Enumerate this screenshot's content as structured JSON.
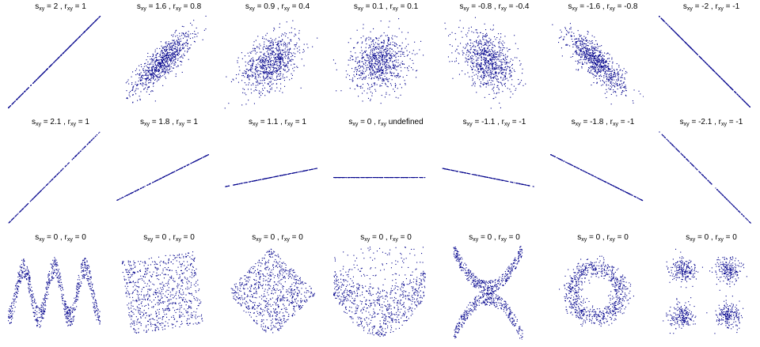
{
  "figure": {
    "point_color": "#00008b"
  },
  "chart_data": [
    {
      "type": "scatter",
      "title_parts": {
        "s_label": "s",
        "s_sub": "xy",
        "s_value": "2",
        "r_label": "r",
        "r_sub": "xy",
        "r_value": "1"
      },
      "pattern": "linear",
      "slope": 1.0,
      "correlation": 1,
      "n_points": 400
    },
    {
      "type": "scatter",
      "title_parts": {
        "s_label": "s",
        "s_sub": "xy",
        "s_value": "1.6",
        "r_label": "r",
        "r_sub": "xy",
        "r_value": "0.8"
      },
      "pattern": "gaussian",
      "correlation": 0.8,
      "n_points": 800
    },
    {
      "type": "scatter",
      "title_parts": {
        "s_label": "s",
        "s_sub": "xy",
        "s_value": "0.9",
        "r_label": "r",
        "r_sub": "xy",
        "r_value": "0.4"
      },
      "pattern": "gaussian",
      "correlation": 0.4,
      "n_points": 800
    },
    {
      "type": "scatter",
      "title_parts": {
        "s_label": "s",
        "s_sub": "xy",
        "s_value": "0.1",
        "r_label": "r",
        "r_sub": "xy",
        "r_value": "0.1"
      },
      "pattern": "gaussian",
      "correlation": 0.1,
      "n_points": 800
    },
    {
      "type": "scatter",
      "title_parts": {
        "s_label": "s",
        "s_sub": "xy",
        "s_value": "-0.8",
        "r_label": "r",
        "r_sub": "xy",
        "r_value": "-0.4"
      },
      "pattern": "gaussian",
      "correlation": -0.4,
      "n_points": 800
    },
    {
      "type": "scatter",
      "title_parts": {
        "s_label": "s",
        "s_sub": "xy",
        "s_value": "-1.6",
        "r_label": "r",
        "r_sub": "xy",
        "r_value": "-0.8"
      },
      "pattern": "gaussian",
      "correlation": -0.8,
      "n_points": 800
    },
    {
      "type": "scatter",
      "title_parts": {
        "s_label": "s",
        "s_sub": "xy",
        "s_value": "-2",
        "r_label": "r",
        "r_sub": "xy",
        "r_value": "-1"
      },
      "pattern": "linear",
      "slope": -1.0,
      "correlation": -1,
      "n_points": 400
    },
    {
      "type": "scatter",
      "title_parts": {
        "s_label": "s",
        "s_sub": "xy",
        "s_value": "2.1",
        "r_label": "r",
        "r_sub": "xy",
        "r_value": "1"
      },
      "pattern": "linear",
      "slope": 1.0,
      "correlation": 1,
      "n_points": 250
    },
    {
      "type": "scatter",
      "title_parts": {
        "s_label": "s",
        "s_sub": "xy",
        "s_value": "1.8",
        "r_label": "r",
        "r_sub": "xy",
        "r_value": "1"
      },
      "pattern": "linear",
      "slope": 0.5,
      "correlation": 1,
      "n_points": 250
    },
    {
      "type": "scatter",
      "title_parts": {
        "s_label": "s",
        "s_sub": "xy",
        "s_value": "1.1",
        "r_label": "r",
        "r_sub": "xy",
        "r_value": "1"
      },
      "pattern": "linear",
      "slope": 0.2,
      "correlation": 1,
      "n_points": 250
    },
    {
      "type": "scatter",
      "title_parts": {
        "s_label": "s",
        "s_sub": "xy",
        "s_value": "0",
        "r_label": "r",
        "r_sub": "xy",
        "r_value": "undefined"
      },
      "pattern": "linear",
      "slope": 0,
      "correlation": null,
      "n_points": 250
    },
    {
      "type": "scatter",
      "title_parts": {
        "s_label": "s",
        "s_sub": "xy",
        "s_value": "-1.1",
        "r_label": "r",
        "r_sub": "xy",
        "r_value": "-1"
      },
      "pattern": "linear",
      "slope": -0.2,
      "correlation": -1,
      "n_points": 250
    },
    {
      "type": "scatter",
      "title_parts": {
        "s_label": "s",
        "s_sub": "xy",
        "s_value": "-1.8",
        "r_label": "r",
        "r_sub": "xy",
        "r_value": "-1"
      },
      "pattern": "linear",
      "slope": -0.5,
      "correlation": -1,
      "n_points": 250
    },
    {
      "type": "scatter",
      "title_parts": {
        "s_label": "s",
        "s_sub": "xy",
        "s_value": "-2.1",
        "r_label": "r",
        "r_sub": "xy",
        "r_value": "-1"
      },
      "pattern": "linear",
      "slope": -1.0,
      "correlation": -1,
      "n_points": 250
    },
    {
      "type": "scatter",
      "title_parts": {
        "s_label": "s",
        "s_sub": "xy",
        "s_value": "0",
        "r_label": "r",
        "r_sub": "xy",
        "r_value": "0"
      },
      "pattern": "w-shape",
      "correlation": 0,
      "n_points": 800
    },
    {
      "type": "scatter",
      "title_parts": {
        "s_label": "s",
        "s_sub": "xy",
        "s_value": "0",
        "r_label": "r",
        "r_sub": "xy",
        "r_value": "0"
      },
      "pattern": "rotated-square",
      "rotation_deg": 8,
      "correlation": 0,
      "n_points": 800
    },
    {
      "type": "scatter",
      "title_parts": {
        "s_label": "s",
        "s_sub": "xy",
        "s_value": "0",
        "r_label": "r",
        "r_sub": "xy",
        "r_value": "0"
      },
      "pattern": "diamond",
      "correlation": 0,
      "n_points": 800
    },
    {
      "type": "scatter",
      "title_parts": {
        "s_label": "s",
        "s_sub": "xy",
        "s_value": "0",
        "r_label": "r",
        "r_sub": "xy",
        "r_value": "0"
      },
      "pattern": "parabola",
      "correlation": 0,
      "n_points": 800
    },
    {
      "type": "scatter",
      "title_parts": {
        "s_label": "s",
        "s_sub": "xy",
        "s_value": "0",
        "r_label": "r",
        "r_sub": "xy",
        "r_value": "0"
      },
      "pattern": "x-shape",
      "correlation": 0,
      "n_points": 800
    },
    {
      "type": "scatter",
      "title_parts": {
        "s_label": "s",
        "s_sub": "xy",
        "s_value": "0",
        "r_label": "r",
        "r_sub": "xy",
        "r_value": "0"
      },
      "pattern": "ring",
      "correlation": 0,
      "n_points": 800
    },
    {
      "type": "scatter",
      "title_parts": {
        "s_label": "s",
        "s_sub": "xy",
        "s_value": "0",
        "r_label": "r",
        "r_sub": "xy",
        "r_value": "0"
      },
      "pattern": "four-clusters",
      "correlation": 0,
      "n_points": 800
    }
  ]
}
